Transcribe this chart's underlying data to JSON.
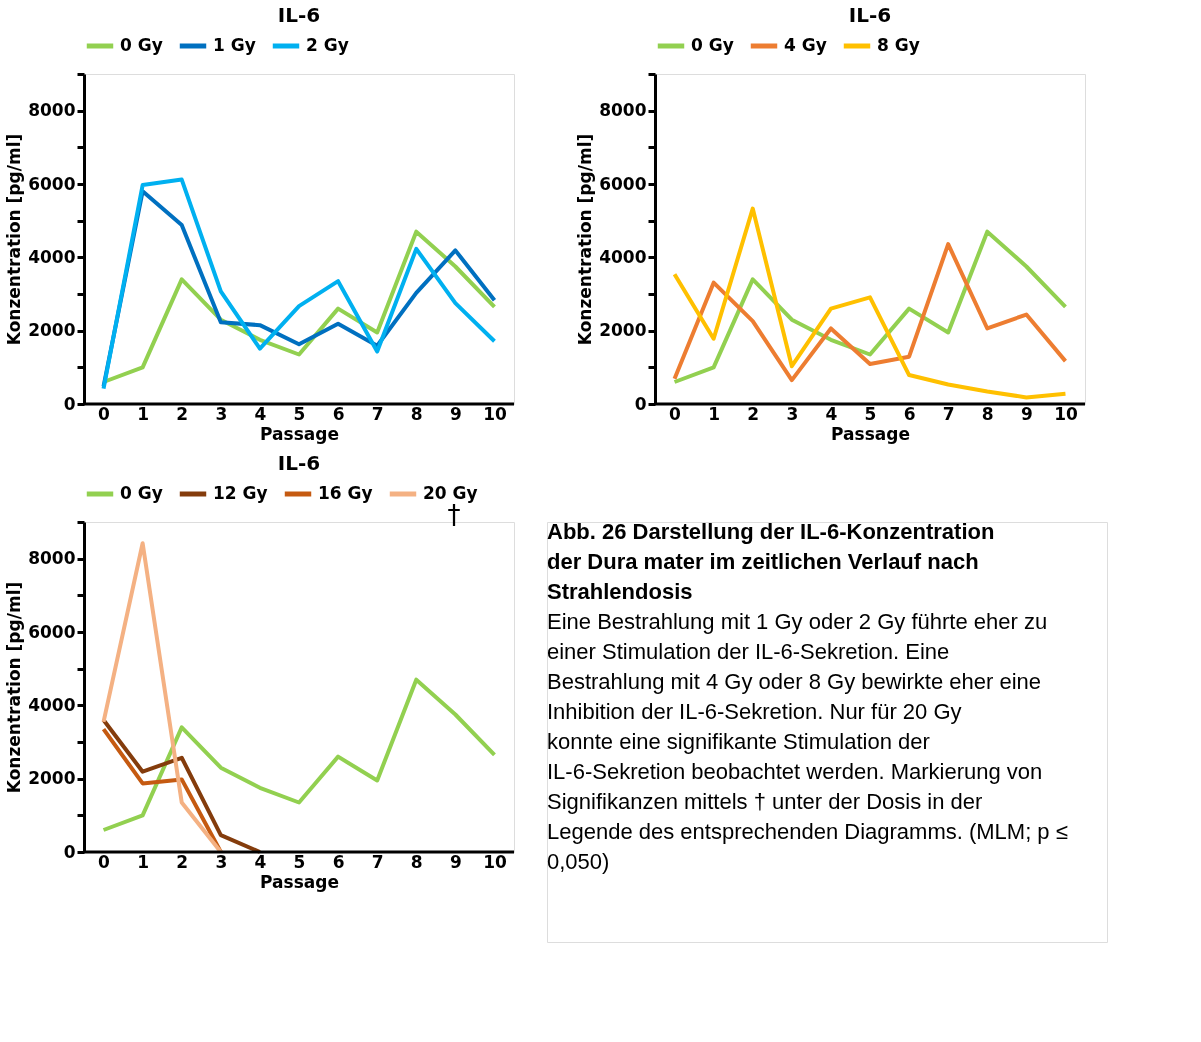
{
  "chart_data": [
    {
      "type": "line",
      "title": "IL-6",
      "xlabel": "Passage",
      "ylabel": "Konzentration [pg/ml]",
      "legend": "top",
      "grid": false,
      "line_style": "solid",
      "marker": "none",
      "categories": [
        "0",
        "1",
        "2",
        "3",
        "4",
        "5",
        "6",
        "7",
        "8",
        "9",
        "10"
      ],
      "ylim": [
        0,
        9000
      ],
      "yticks": [
        0,
        {
          "value": 1000,
          "label": null
        },
        2000,
        {
          "value": 3000,
          "label": null
        },
        4000,
        {
          "value": 5000,
          "label": null
        },
        6000,
        {
          "value": 7000,
          "label": null
        },
        8000,
        {
          "value": 9000,
          "label": null
        }
      ],
      "series": [
        {
          "name": "0 Gy",
          "color": "#92d050",
          "values": [
            600,
            1000,
            3400,
            2300,
            1750,
            1350,
            2600,
            1950,
            4700,
            3750,
            2650
          ]
        },
        {
          "name": "1 Gy",
          "color": "#0070c0",
          "values": [
            480,
            5800,
            4880,
            2230,
            2150,
            1630,
            2190,
            1590,
            3030,
            4190,
            2830
          ]
        },
        {
          "name": "2 Gy",
          "color": "#00b0f0",
          "values": [
            420,
            5970,
            6120,
            3070,
            1510,
            2670,
            3350,
            1430,
            4230,
            2750,
            1710
          ]
        }
      ]
    },
    {
      "type": "line",
      "title": "IL-6",
      "xlabel": "Passage",
      "ylabel": "Konzentration [pg/ml]",
      "legend": "top",
      "grid": false,
      "line_style": "solid",
      "marker": "none",
      "categories": [
        "0",
        "1",
        "2",
        "3",
        "4",
        "5",
        "6",
        "7",
        "8",
        "9",
        "10"
      ],
      "ylim": [
        0,
        9000
      ],
      "yticks": [
        0,
        {
          "value": 1000,
          "label": null
        },
        2000,
        {
          "value": 3000,
          "label": null
        },
        4000,
        {
          "value": 5000,
          "label": null
        },
        6000,
        {
          "value": 7000,
          "label": null
        },
        8000,
        {
          "value": 9000,
          "label": null
        }
      ],
      "series": [
        {
          "name": "0 Gy",
          "color": "#92d050",
          "values": [
            600,
            1000,
            3400,
            2300,
            1750,
            1350,
            2600,
            1950,
            4700,
            3750,
            2650
          ]
        },
        {
          "name": "4 Gy",
          "color": "#ed7d31",
          "values": [
            690,
            3310,
            2260,
            650,
            2060,
            1090,
            1290,
            4360,
            2060,
            2440,
            1170
          ]
        },
        {
          "name": "8 Gy",
          "color": "#ffc000",
          "values": [
            3540,
            1780,
            5330,
            1030,
            2600,
            2910,
            790,
            530,
            340,
            180,
            280
          ]
        }
      ]
    },
    {
      "type": "line",
      "title": "IL-6",
      "xlabel": "Passage",
      "ylabel": "Konzentration [pg/ml]",
      "legend": "top",
      "grid": false,
      "line_style": "solid",
      "marker": "none",
      "categories": [
        "0",
        "1",
        "2",
        "3",
        "4",
        "5",
        "6",
        "7",
        "8",
        "9",
        "10"
      ],
      "ylim": [
        0,
        9000
      ],
      "yticks": [
        0,
        {
          "value": 1000,
          "label": null
        },
        2000,
        {
          "value": 3000,
          "label": null
        },
        4000,
        {
          "value": 5000,
          "label": null
        },
        6000,
        {
          "value": 7000,
          "label": null
        },
        8000,
        {
          "value": 9000,
          "label": null
        }
      ],
      "annotations": [
        "†"
      ],
      "series": [
        {
          "name": "0 Gy",
          "color": "#92d050",
          "values": [
            600,
            1000,
            3400,
            2300,
            1750,
            1350,
            2600,
            1950,
            4700,
            3750,
            2650
          ]
        },
        {
          "name": "12 Gy",
          "color": "#843c0c",
          "values": [
            3600,
            2190,
            2570,
            460,
            0,
            null,
            null,
            null,
            null,
            null,
            null
          ]
        },
        {
          "name": "16 Gy",
          "color": "#c55a11",
          "values": [
            3350,
            1870,
            1980,
            0,
            null,
            null,
            null,
            null,
            null,
            null,
            null
          ]
        },
        {
          "name": "20 Gy",
          "color": "#f4b183",
          "values": [
            3550,
            8420,
            1350,
            0,
            null,
            null,
            null,
            null,
            null,
            null,
            null
          ]
        }
      ]
    },
    {
      "type": "other",
      "title": "Abb. 26 Darstellung der IL-6-Konzentration der Dura mater im zeitlichen Verlauf nach Strahlendosis",
      "annotations": [
        "Eine Bestrahlung mit 1 Gy oder 2 Gy führte eher zu einer Stimulation der IL-6-Sekretion. Eine Bestrahlung mit 4 Gy oder 8 Gy bewirkte eher eine Inhibition der IL-6-Sekretion. Nur für 20 Gy konnte eine signifikante Stimulation der IL-6-Sekretion beobachtet werden. Markierung von Signifikanzen mittels † unter der Dosis in der Legende des entsprechenden Diagramms. (MLM; p ≤ 0,050)"
      ]
    }
  ]
}
